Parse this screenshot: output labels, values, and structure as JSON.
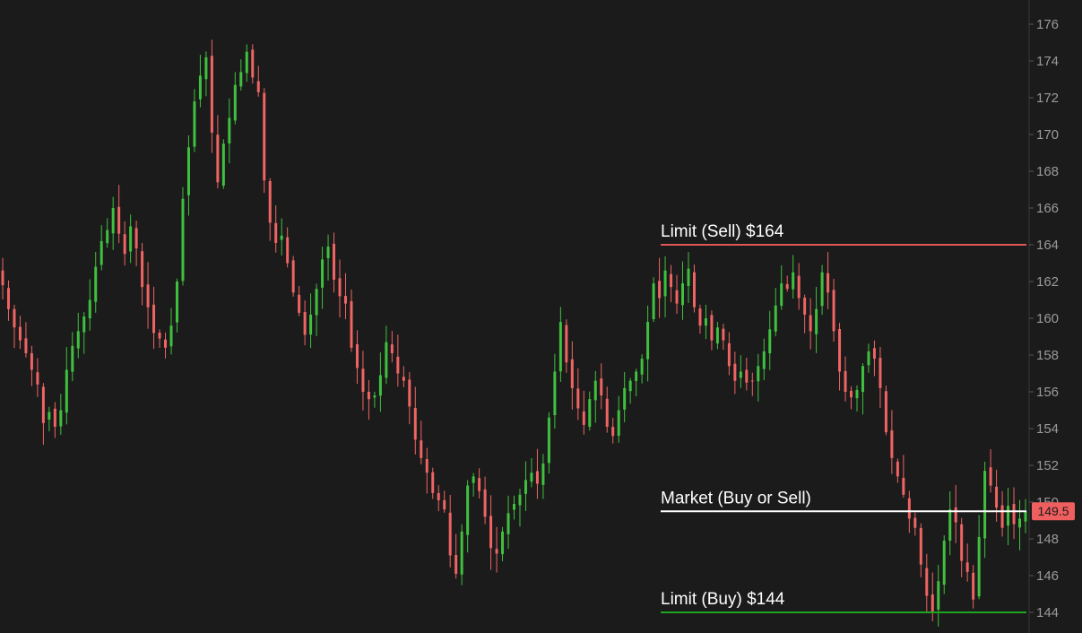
{
  "chart_data": {
    "type": "candlestick",
    "yaxis": {
      "ticks": [
        "144",
        "146",
        "148",
        "150",
        "152",
        "154",
        "156",
        "158",
        "160",
        "162",
        "164",
        "166",
        "168",
        "170",
        "172",
        "174",
        "176"
      ],
      "ylim": [
        143,
        177
      ],
      "position": "right"
    },
    "grid": false,
    "current_price": {
      "label": "149.5",
      "value": 149.5,
      "color": "#f05f5f"
    },
    "price_lines": [
      {
        "label": "Limit (Sell) $164",
        "value": 164,
        "color": "#e05555"
      },
      {
        "label": "Market (Buy or Sell)",
        "value": 149.5,
        "color": "#ffffff"
      },
      {
        "label": "Limit (Buy) $144",
        "value": 144,
        "color": "#1fa51f"
      }
    ],
    "candle_colors": {
      "up": "#3fc13f",
      "down": "#f06464"
    },
    "series": [
      {
        "name": "",
        "close": [
          161.8,
          160.5,
          159.5,
          158.8,
          158.1,
          157.2,
          156.4,
          154.3,
          154.9,
          154.1,
          155.0,
          157.2,
          158.5,
          159.3,
          160.1,
          161.0,
          162.8,
          164.2,
          164.8,
          166.0,
          164.6,
          163.5,
          165.0,
          163.8,
          161.7,
          160.6,
          159.2,
          158.9,
          158.4,
          159.6,
          162.0,
          166.5,
          169.3,
          171.8,
          173.2,
          174.2,
          170.1,
          167.4,
          169.5,
          170.9,
          172.7,
          173.4,
          174.5,
          173.1,
          172.3,
          167.5,
          165.2,
          164.1,
          164.5,
          163.0,
          161.4,
          160.3,
          159.1,
          160.2,
          161.6,
          163.2,
          163.9,
          162.1,
          161.2,
          160.8,
          158.4,
          157.3,
          156.0,
          155.6,
          155.8,
          156.9,
          158.7,
          158.1,
          157.0,
          156.6,
          155.2,
          153.4,
          152.4,
          151.6,
          150.5,
          150.1,
          149.6,
          147.1,
          146.1,
          148.4,
          150.9,
          151.4,
          150.6,
          149.2,
          147.5,
          147.2,
          148.4,
          149.4,
          149.9,
          150.4,
          151.2,
          151.6,
          151.0,
          152.1,
          154.6,
          157.1,
          159.8,
          157.6,
          156.2,
          155.1,
          154.2,
          155.6,
          156.6,
          155.8,
          154.1,
          153.6,
          155.0,
          156.2,
          156.6,
          157.1,
          157.8,
          159.8,
          161.9,
          161.1,
          162.6,
          161.7,
          160.8,
          161.9,
          162.7,
          160.6,
          159.6,
          160.0,
          158.8,
          159.5,
          158.8,
          157.4,
          156.6,
          157.1,
          156.5,
          156.6,
          157.4,
          158.2,
          159.4,
          160.7,
          161.9,
          161.6,
          162.5,
          161.1,
          160.2,
          159.3,
          160.5,
          162.5,
          161.4,
          159.3,
          157.1,
          156.0,
          155.7,
          156.1,
          157.4,
          158.2,
          157.8,
          156.2,
          153.8,
          152.4,
          151.4,
          150.4,
          149.1,
          148.6,
          146.6,
          144.9,
          144.0,
          145.7,
          147.9,
          149.6,
          148.9,
          146.8,
          146.2,
          144.7,
          148.1,
          151.7,
          150.9,
          149.7,
          148.6,
          149.8,
          148.8,
          149.1,
          149.5
        ]
      }
    ]
  }
}
